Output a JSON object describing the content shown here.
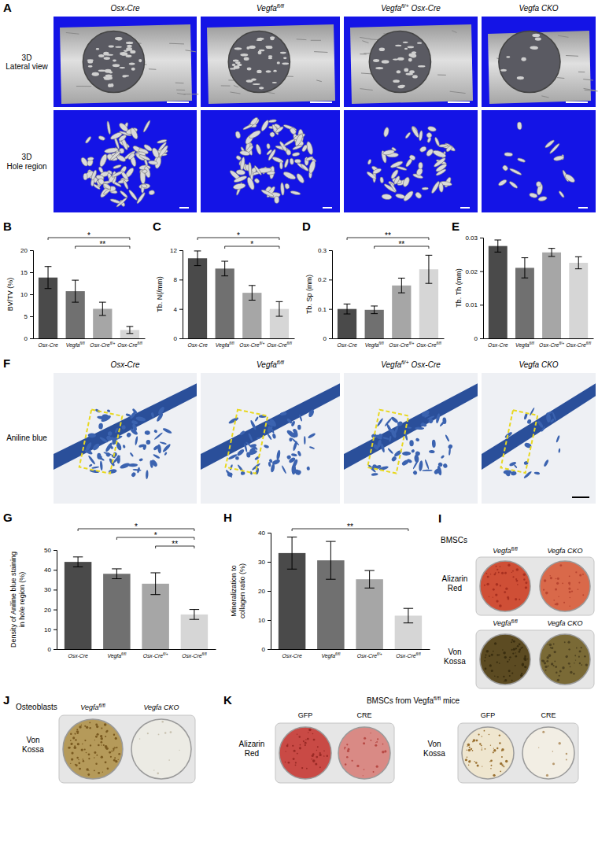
{
  "chart_data": [
    {
      "type": "bar",
      "title": "B",
      "ylabel": [
        "BV/TV (%)"
      ],
      "categories": [
        "Osx-Cre",
        "Vegfafl/fl",
        "Osx-Crefl/+",
        "Osx-Crefl/fl"
      ],
      "values": [
        13.8,
        10.7,
        6.7,
        1.9
      ],
      "errors": [
        2.5,
        2.5,
        1.5,
        0.8
      ],
      "colors": [
        "#4a4a4a",
        "#707070",
        "#a6a6a6",
        "#d6d6d6"
      ],
      "ylim": [
        0,
        20
      ],
      "yticks": [
        0,
        5,
        10,
        15,
        20
      ],
      "annotations": [
        {
          "from": "Osx-Cre",
          "to": "Osx-Crefl/fl",
          "label": "*"
        },
        {
          "from": "Vegfafl/fl",
          "to": "Osx-Crefl/fl",
          "label": "**"
        }
      ]
    },
    {
      "type": "bar",
      "title": "C",
      "ylabel": [
        "Tb. N(/mm)"
      ],
      "categories": [
        "Osx-Cre",
        "Vegfafl/fl",
        "Osx-Crefl/+",
        "Osx-Crefl/fl"
      ],
      "values": [
        10.9,
        9.5,
        6.2,
        4.0
      ],
      "errors": [
        1.0,
        1.0,
        1.0,
        1.0
      ],
      "colors": [
        "#4a4a4a",
        "#707070",
        "#a6a6a6",
        "#d6d6d6"
      ],
      "ylim": [
        0,
        12
      ],
      "yticks": [
        0,
        4,
        8,
        12
      ],
      "annotations": [
        {
          "from": "Osx-Cre",
          "to": "Osx-Crefl/fl",
          "label": "*"
        },
        {
          "from": "Vegfafl/fl",
          "to": "Osx-Crefl/fl",
          "label": "*"
        }
      ]
    },
    {
      "type": "bar",
      "title": "D",
      "ylabel": [
        "Tb. Sp (mm)"
      ],
      "categories": [
        "Osx-Cre",
        "Vegfafl/fl",
        "Osx-Crefl/+",
        "Osx-Crefl/fl"
      ],
      "values": [
        0.1,
        0.097,
        0.18,
        0.235
      ],
      "errors": [
        0.017,
        0.013,
        0.025,
        0.048
      ],
      "colors": [
        "#4a4a4a",
        "#707070",
        "#a6a6a6",
        "#d6d6d6"
      ],
      "ylim": [
        0,
        0.3
      ],
      "yticks": [
        0,
        0.1,
        0.2,
        0.3
      ],
      "annotations": [
        {
          "from": "Osx-Cre",
          "to": "Osx-Crefl/fl",
          "label": "**"
        },
        {
          "from": "Vegfafl/fl",
          "to": "Osx-Crefl/fl",
          "label": "**"
        }
      ]
    },
    {
      "type": "bar",
      "title": "E",
      "ylabel": [
        "Tb. Th (mm)"
      ],
      "categories": [
        "Osx-Cre",
        "Vegfafl/fl",
        "Osx-Crefl/+",
        "Osx-Crefl/fl"
      ],
      "values": [
        0.0275,
        0.021,
        0.0256,
        0.0225
      ],
      "errors": [
        0.0018,
        0.003,
        0.0012,
        0.0018
      ],
      "colors": [
        "#4a4a4a",
        "#707070",
        "#a6a6a6",
        "#d6d6d6"
      ],
      "ylim": [
        0,
        0.03
      ],
      "yticks": [
        0,
        0.01,
        0.02,
        0.03
      ]
    },
    {
      "type": "bar",
      "title": "G",
      "ylabel": [
        "Density of Aniline blue staining",
        "in hole region (%)"
      ],
      "categories": [
        "Osx-Cre",
        "Vegfafl/fl",
        "Osx-Crefl/+",
        "Osx-Crefl/fl"
      ],
      "values": [
        44,
        38,
        33,
        17.5
      ],
      "errors": [
        2.5,
        2.5,
        5.5,
        2.5
      ],
      "colors": [
        "#4a4a4a",
        "#707070",
        "#a6a6a6",
        "#d6d6d6"
      ],
      "ylim": [
        0,
        50
      ],
      "yticks": [
        0,
        10,
        20,
        30,
        40,
        50
      ],
      "annotations": [
        {
          "from": "Osx-Cre",
          "to": "Osx-Crefl/fl",
          "label": "*"
        },
        {
          "from": "Vegfafl/fl",
          "to": "Osx-Crefl/fl",
          "label": "*"
        },
        {
          "from": "Osx-Crefl/+",
          "to": "Osx-Crefl/fl",
          "label": "**"
        }
      ]
    },
    {
      "type": "bar",
      "title": "H",
      "ylabel": [
        "Mineralization to",
        "collagen ratio (%)"
      ],
      "categories": [
        "Osx-Cre",
        "Vegfafl/fl",
        "Osx-Crefl/+",
        "Osx-Crefl/fl"
      ],
      "values": [
        33,
        30.5,
        24,
        11.5
      ],
      "errors": [
        5.5,
        6.5,
        3,
        2.5
      ],
      "colors": [
        "#4a4a4a",
        "#707070",
        "#a6a6a6",
        "#d6d6d6"
      ],
      "ylim": [
        0,
        40
      ],
      "yticks": [
        0,
        10,
        20,
        30,
        40
      ],
      "annotations": [
        {
          "from": "Osx-Cre",
          "to": "Osx-Crefl/fl",
          "label": "**"
        }
      ]
    }
  ],
  "image_panels": {
    "A": {
      "label": "A",
      "columns": [
        "Osx-Cre",
        "Vegfafl/fl",
        "Vegfafl/+ Osx-Cre",
        "Vegfa CKO"
      ],
      "rows": [
        [
          "3D",
          "Lateral view"
        ],
        [
          "3D",
          "Hole region"
        ]
      ]
    },
    "F": {
      "label": "F",
      "columns": [
        "Osx-Cre",
        "Vegfafl/fl",
        "Vegfafl/+ Osx-Cre",
        "Vegfa CKO"
      ],
      "rows": [
        [
          "Aniline blue"
        ]
      ]
    },
    "I": {
      "label": "I",
      "group": "BMSCs",
      "sections": [
        {
          "label": [
            "Alizarin",
            "Red"
          ],
          "columns": [
            "Vegfafl/fl",
            "Vegfa CKO"
          ]
        },
        {
          "label": [
            "Von",
            "Kossa"
          ],
          "columns": [
            "Vegfafl/fl",
            "Vegfa CKO"
          ]
        }
      ]
    },
    "J": {
      "label": "J",
      "group": "Osteoblasts",
      "sections": [
        {
          "label": [
            "Von",
            "Kossa"
          ],
          "columns": [
            "Vegfafl/fl",
            "Vegfa CKO"
          ]
        }
      ]
    },
    "K": {
      "label": "K",
      "group": "BMSCs from Vegfafl/fl mice",
      "sections": [
        {
          "label": [
            "Alizarin",
            "Red"
          ],
          "columns": [
            "GFP",
            "CRE"
          ]
        },
        {
          "label": [
            "Von",
            "Kossa"
          ],
          "columns": [
            "GFP",
            "CRE"
          ]
        }
      ]
    }
  }
}
